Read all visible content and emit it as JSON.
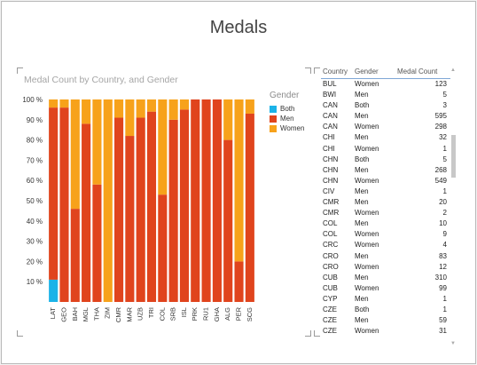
{
  "title": "Medals",
  "colors": {
    "both": "#1bb3e8",
    "men": "#e0441d",
    "women": "#f7a21b"
  },
  "legend": {
    "title": "Gender",
    "items": [
      {
        "label": "Both",
        "color": "#1bb3e8"
      },
      {
        "label": "Men",
        "color": "#e0441d"
      },
      {
        "label": "Women",
        "color": "#f7a21b"
      }
    ]
  },
  "chart_data": {
    "type": "bar",
    "stacked": "percent",
    "title": "Medal Count by Country, and Gender",
    "categories": [
      "LAT",
      "GEO",
      "BAH",
      "MGL",
      "THA",
      "ZIM",
      "CMR",
      "MAR",
      "UZB",
      "TRI",
      "COL",
      "SRB",
      "ISL",
      "PRK",
      "RU1",
      "GHA",
      "ALG",
      "PER",
      "SCG"
    ],
    "series": [
      {
        "name": "Both",
        "values": [
          11,
          0,
          0,
          0,
          0,
          0,
          0,
          0,
          0,
          0,
          0,
          0,
          0,
          0,
          0,
          0,
          0,
          0,
          0
        ]
      },
      {
        "name": "Men",
        "values": [
          85,
          96,
          46,
          88,
          58,
          0,
          91,
          82,
          91,
          94,
          53,
          90,
          95,
          100,
          100,
          100,
          80,
          20,
          93
        ]
      },
      {
        "name": "Women",
        "values": [
          4,
          4,
          54,
          12,
          42,
          100,
          9,
          18,
          9,
          6,
          47,
          10,
          5,
          0,
          0,
          0,
          20,
          80,
          7
        ]
      }
    ],
    "ylim": [
      0,
      100
    ],
    "yticks": [
      "10 %",
      "20 %",
      "30 %",
      "40 %",
      "50 %",
      "60 %",
      "70 %",
      "80 %",
      "90 %",
      "100 %"
    ],
    "legend": "right"
  },
  "table": {
    "headers": [
      "Country",
      "Gender",
      "Medal Count"
    ],
    "rows": [
      [
        "BUL",
        "Women",
        "123"
      ],
      [
        "BWI",
        "Men",
        "5"
      ],
      [
        "CAN",
        "Both",
        "3"
      ],
      [
        "CAN",
        "Men",
        "595"
      ],
      [
        "CAN",
        "Women",
        "298"
      ],
      [
        "CHI",
        "Men",
        "32"
      ],
      [
        "CHI",
        "Women",
        "1"
      ],
      [
        "CHN",
        "Both",
        "5"
      ],
      [
        "CHN",
        "Men",
        "268"
      ],
      [
        "CHN",
        "Women",
        "549"
      ],
      [
        "CIV",
        "Men",
        "1"
      ],
      [
        "CMR",
        "Men",
        "20"
      ],
      [
        "CMR",
        "Women",
        "2"
      ],
      [
        "COL",
        "Men",
        "10"
      ],
      [
        "COL",
        "Women",
        "9"
      ],
      [
        "CRC",
        "Women",
        "4"
      ],
      [
        "CRO",
        "Men",
        "83"
      ],
      [
        "CRO",
        "Women",
        "12"
      ],
      [
        "CUB",
        "Men",
        "310"
      ],
      [
        "CUB",
        "Women",
        "99"
      ],
      [
        "CYP",
        "Men",
        "1"
      ],
      [
        "CZE",
        "Both",
        "1"
      ],
      [
        "CZE",
        "Men",
        "59"
      ],
      [
        "CZE",
        "Women",
        "31"
      ]
    ]
  }
}
